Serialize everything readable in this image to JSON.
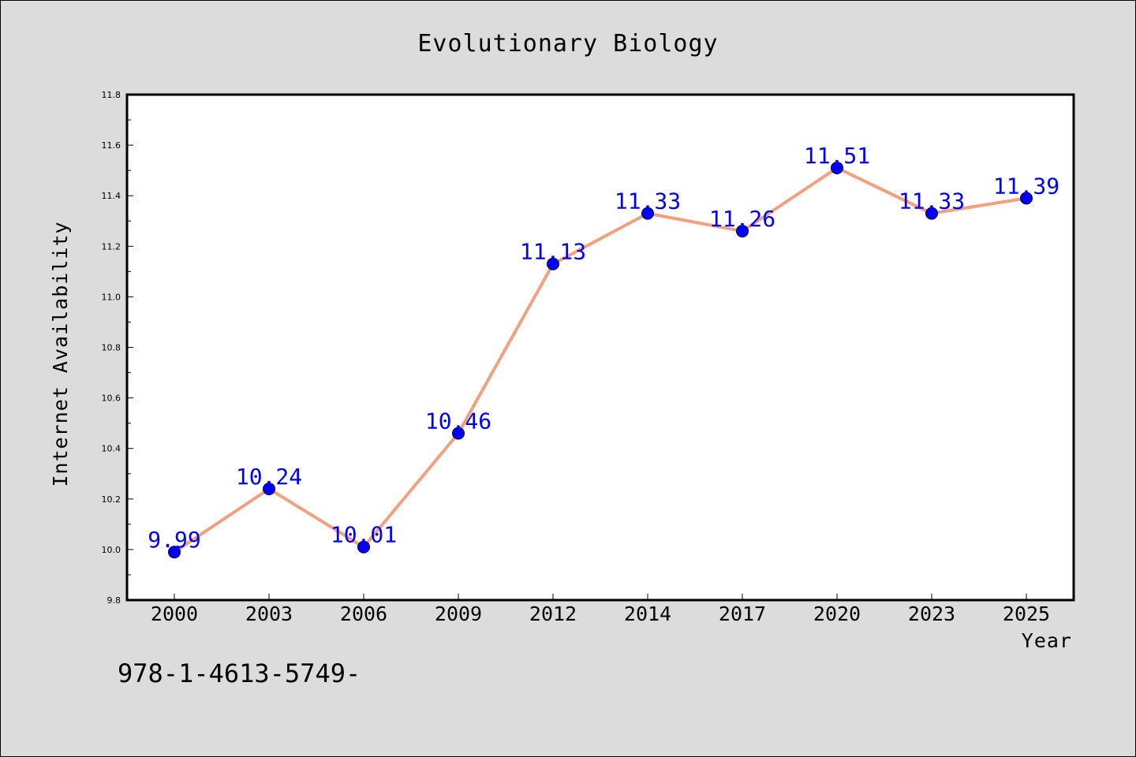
{
  "chart_data": {
    "type": "line",
    "title": "Evolutionary Biology",
    "xlabel": "Year",
    "ylabel": "Internet Availability",
    "categories": [
      "2000",
      "2003",
      "2006",
      "2009",
      "2012",
      "2014",
      "2017",
      "2020",
      "2023",
      "2025"
    ],
    "values": [
      9.99,
      10.24,
      10.01,
      10.46,
      11.13,
      11.33,
      11.26,
      11.51,
      11.33,
      11.39
    ],
    "data_labels": [
      "9.99",
      "10.24",
      "10.01",
      "10.46",
      "11.13",
      "11.33",
      "11.26",
      "11.51",
      "11.33",
      "11.39"
    ],
    "ylim": [
      9.8,
      11.8
    ],
    "yticks": [
      "9.8",
      "10.0",
      "10.2",
      "10.4",
      "10.6",
      "10.8",
      "11.0",
      "11.2",
      "11.4",
      "11.6",
      "11.8"
    ],
    "grid": false,
    "line_color": "#f4a07e",
    "marker_color": "#0000ff",
    "label_color": "#0000ff",
    "background_color": "#dcdcdc",
    "plot_background": "#ffffff"
  },
  "footer": {
    "text": "978-1-4613-5749-"
  }
}
